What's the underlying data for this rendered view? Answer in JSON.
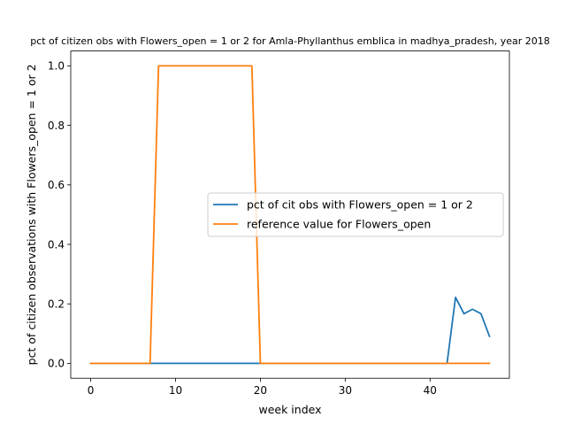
{
  "chart_data": {
    "type": "line",
    "title": "pct of citizen obs with Flowers_open = 1 or 2 for Amla-Phyllanthus emblica in madhya_pradesh, year 2018",
    "xlabel": "week index",
    "ylabel": "pct of citizen observations with Flowers_open = 1 or 2",
    "xlim": [
      -2.35,
      49.35
    ],
    "ylim": [
      -0.05,
      1.05
    ],
    "xticks": [
      0,
      10,
      20,
      30,
      40
    ],
    "yticks": [
      0.0,
      0.2,
      0.4,
      0.6,
      0.8,
      1.0
    ],
    "xtick_labels": [
      "0",
      "10",
      "20",
      "30",
      "40"
    ],
    "ytick_labels": [
      "0.0",
      "0.2",
      "0.4",
      "0.6",
      "0.8",
      "1.0"
    ],
    "grid": false,
    "legend_position": "center-right",
    "series": [
      {
        "name": "pct of cit obs with Flowers_open = 1 or 2",
        "color": "#1f77b4",
        "x": [
          0,
          1,
          2,
          3,
          4,
          5,
          6,
          7,
          8,
          9,
          10,
          11,
          12,
          13,
          14,
          15,
          16,
          17,
          18,
          19,
          20,
          21,
          22,
          23,
          24,
          25,
          26,
          27,
          28,
          29,
          30,
          31,
          32,
          33,
          34,
          35,
          36,
          37,
          38,
          39,
          40,
          41,
          42,
          43,
          44,
          45,
          46,
          47
        ],
        "y": [
          0,
          0,
          0,
          0,
          0,
          0,
          0,
          0,
          0,
          0,
          0,
          0,
          0,
          0,
          0,
          0,
          0,
          0,
          0,
          0,
          0,
          0,
          0,
          0,
          0,
          0,
          0,
          0,
          0,
          0,
          0,
          0,
          0,
          0,
          0,
          0,
          0,
          0,
          0,
          0,
          0,
          0,
          0,
          0.222,
          0.167,
          0.182,
          0.167,
          0.091
        ]
      },
      {
        "name": "reference value for Flowers_open",
        "color": "#ff7f0e",
        "x": [
          0,
          1,
          2,
          3,
          4,
          5,
          6,
          7,
          8,
          9,
          10,
          11,
          12,
          13,
          14,
          15,
          16,
          17,
          18,
          19,
          20,
          21,
          22,
          23,
          24,
          25,
          26,
          27,
          28,
          29,
          30,
          31,
          32,
          33,
          34,
          35,
          36,
          37,
          38,
          39,
          40,
          41,
          42,
          43,
          44,
          45,
          46,
          47
        ],
        "y": [
          0,
          0,
          0,
          0,
          0,
          0,
          0,
          0,
          1,
          1,
          1,
          1,
          1,
          1,
          1,
          1,
          1,
          1,
          1,
          1,
          0,
          0,
          0,
          0,
          0,
          0,
          0,
          0,
          0,
          0,
          0,
          0,
          0,
          0,
          0,
          0,
          0,
          0,
          0,
          0,
          0,
          0,
          0,
          0,
          0,
          0,
          0,
          0
        ]
      }
    ]
  }
}
